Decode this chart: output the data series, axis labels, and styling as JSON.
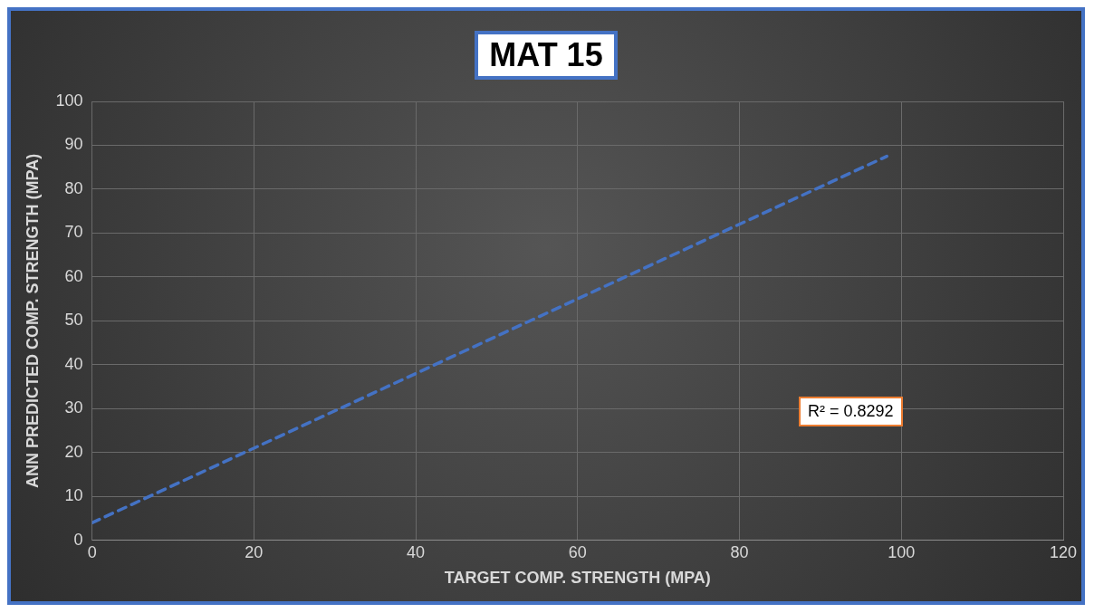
{
  "chart_data": {
    "type": "line",
    "title": "MAT 15",
    "xlabel": "TARGET COMP. STRENGTH (MPA)",
    "ylabel": "ANN PREDICTED COMP. STRENGTH (MPA)",
    "series": [
      {
        "color": "#4472c4",
        "x": [
          0,
          98.2
        ],
        "values": [
          4,
          87.5
        ],
        "line_style": "dashed",
        "marker": "none"
      }
    ],
    "annotations": [
      "R² = 0.8292"
    ],
    "xlim": [
      0,
      120
    ],
    "xticks": [
      0,
      20,
      40,
      60,
      80,
      100,
      120
    ],
    "ylim": [
      0,
      100
    ],
    "yticks": [
      0,
      10,
      20,
      30,
      40,
      50,
      60,
      70,
      80,
      90,
      100
    ],
    "grid": true,
    "legend": false
  }
}
